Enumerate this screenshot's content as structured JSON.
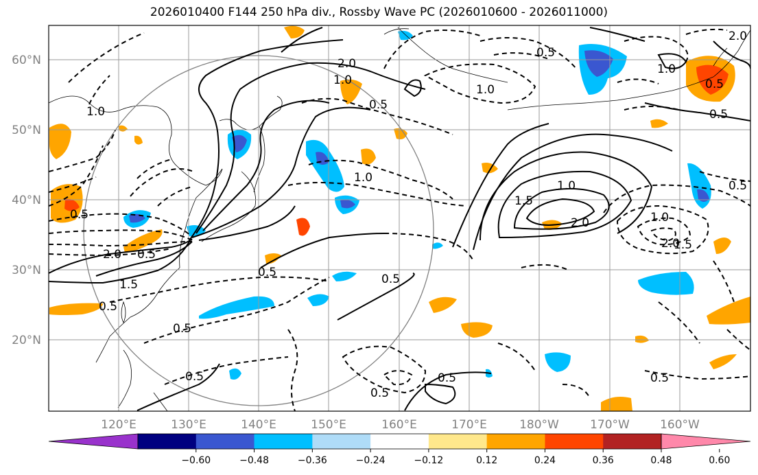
{
  "title": "2026010400 F144 250 hPa div., Rossby Wave PC (2026010600 - 2026011000)",
  "map": {
    "lon_ticks": [
      "120°E",
      "130°E",
      "140°E",
      "150°E",
      "160°E",
      "170°E",
      "180°W",
      "170°W",
      "160°W"
    ],
    "lat_ticks": [
      "60°N",
      "50°N",
      "40°N",
      "30°N",
      "20°N"
    ],
    "contour_labels": [
      "2.0",
      "1.0",
      "0.5",
      "1.0",
      "0.5",
      "1.0",
      "1.0",
      "1.0",
      "0.5",
      "1.5",
      "2.0",
      "1.0",
      "2.0",
      "1.5",
      "0.5",
      "0.5",
      "0.5",
      "0.5",
      "0.5",
      "0.5",
      "0.5",
      "0.5",
      "2.0",
      "0.5",
      "0.5",
      "1.5",
      "0.5",
      "1.0",
      "0.5",
      "2.0"
    ]
  },
  "colorbar": {
    "ticks": [
      "−0.60",
      "−0.48",
      "−0.36",
      "−0.24",
      "−0.12",
      "0.12",
      "0.24",
      "0.36",
      "0.48",
      "0.60"
    ],
    "colors": [
      "#9932cc",
      "#000080",
      "#3a57d0",
      "#00bfff",
      "#afdcf8",
      "#ffffff",
      "#ffe88c",
      "#ffa500",
      "#ff4500",
      "#b22222",
      "#ff88aa"
    ]
  }
}
